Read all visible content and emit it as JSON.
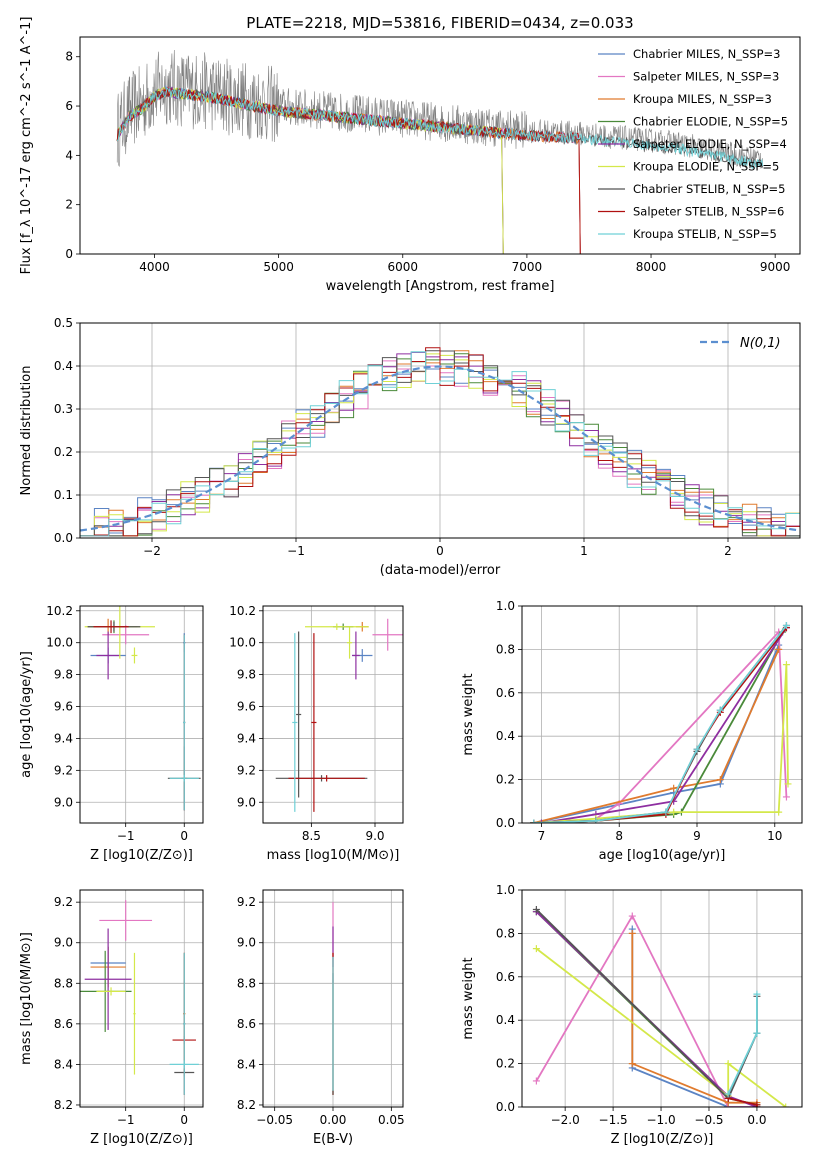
{
  "figure": {
    "title": "PLATE=2218, MJD=53816, FIBERID=0434, z=0.033"
  },
  "colors": {
    "Chabrier MILES": "#5b84c4",
    "Salpeter MILES": "#e377c2",
    "Kroupa MILES": "#e07b2e",
    "Chabrier ELODIE": "#4a8a3a",
    "Salpeter ELODIE": "#8e2fa0",
    "Kroupa ELODIE": "#d4e84a",
    "Chabrier STELIB": "#555555",
    "Salpeter STELIB": "#b01010",
    "Kroupa STELIB": "#6fd0d6",
    "gaussian": "#5b8fd0",
    "data": "#808080"
  },
  "chart_data": [
    {
      "id": "spectrum",
      "type": "line",
      "title": "PLATE=2218, MJD=53816, FIBERID=0434, z=0.033",
      "xlabel": "wavelength [Angstrom, rest frame]",
      "ylabel": "Flux [f_λ 10^-17 erg cm^-2 s^-1 A^-1]",
      "xlim": [
        3400,
        9200
      ],
      "ylim": [
        0,
        8.8
      ],
      "xticks": [
        4000,
        5000,
        6000,
        7000,
        8000,
        9000
      ],
      "yticks": [
        0,
        2,
        4,
        6,
        8
      ],
      "grid": false,
      "legend_position": "top-right",
      "legend": [
        "Chabrier MILES, N_SSP=3",
        "Salpeter MILES, N_SSP=3",
        "Kroupa MILES, N_SSP=3",
        "Chabrier ELODIE, N_SSP=5",
        "Salpeter ELODIE, N_SSP=4",
        "Kroupa ELODIE, N_SSP=5",
        "Chabrier STELIB, N_SSP=5",
        "Salpeter STELIB, N_SSP=6",
        "Kroupa STELIB, N_SSP=5"
      ],
      "continuum": {
        "x": [
          3700,
          3800,
          3900,
          4000,
          4100,
          4200,
          4400,
          4600,
          4800,
          5000,
          5200,
          5400,
          5600,
          5800,
          6000,
          6200,
          6400,
          6600,
          6800,
          7000,
          7200,
          7400,
          7600,
          7800,
          8000,
          8200,
          8400,
          8600,
          8800,
          8900
        ],
        "y": [
          5.0,
          5.8,
          6.1,
          6.6,
          6.8,
          6.7,
          6.6,
          6.4,
          6.2,
          6.0,
          5.9,
          5.8,
          5.7,
          5.6,
          5.5,
          5.4,
          5.3,
          5.2,
          5.1,
          5.0,
          4.95,
          4.9,
          4.8,
          4.7,
          4.6,
          4.5,
          4.3,
          4.1,
          3.9,
          3.9
        ]
      }
    },
    {
      "id": "residuals",
      "type": "bar",
      "xlabel": "(data-model)/error",
      "ylabel": "Normed distribution",
      "xlim": [
        -2.5,
        2.5
      ],
      "ylim": [
        0,
        0.5
      ],
      "xticks": [
        -2,
        -1,
        0,
        1,
        2
      ],
      "yticks": [
        0.0,
        0.1,
        0.2,
        0.3,
        0.4,
        0.5
      ],
      "grid": true,
      "legend_position": "top-right",
      "legend": [
        "N(0,1)"
      ],
      "bin_width": 0.1,
      "gaussian": {
        "mean": 0,
        "sigma": 1
      }
    },
    {
      "id": "age_vs_Z",
      "type": "scatter",
      "xlabel": "Z [log10(Z/Z⊙)]",
      "ylabel": "age  [log10(age/yr)]",
      "xlim": [
        -1.78,
        0.32
      ],
      "ylim": [
        8.87,
        10.23
      ],
      "xticks": [
        -1,
        0
      ],
      "yticks": [
        9.0,
        9.2,
        9.4,
        9.6,
        9.8,
        10.0,
        10.2
      ],
      "grid": true,
      "series": [
        {
          "name": "Chabrier MILES",
          "points": [
            {
              "x": -1.3,
              "y": 9.92,
              "xerr": 0.3,
              "yerr": 0.05
            },
            {
              "x": 0.0,
              "y": 10.0,
              "xerr": 0.02,
              "yerr": 0.06
            }
          ]
        },
        {
          "name": "Salpeter MILES",
          "points": [
            {
              "x": -1.0,
              "y": 10.05,
              "xerr": 0.4,
              "yerr": 0.06
            }
          ]
        },
        {
          "name": "Kroupa MILES",
          "points": [
            {
              "x": -1.3,
              "y": 10.1,
              "xerr": 0.35,
              "yerr": 0.05
            },
            {
              "x": 0.0,
              "y": 9.15,
              "xerr": 0.05,
              "yerr": 0.1
            }
          ]
        },
        {
          "name": "Chabrier ELODIE",
          "points": [
            {
              "x": -1.2,
              "y": 10.1,
              "xerr": 0.4,
              "yerr": 0.04
            }
          ]
        },
        {
          "name": "Salpeter ELODIE",
          "points": [
            {
              "x": -1.3,
              "y": 9.92,
              "xerr": 0.2,
              "yerr": 0.15
            }
          ]
        },
        {
          "name": "Kroupa ELODIE",
          "points": [
            {
              "x": -1.1,
              "y": 10.1,
              "xerr": 0.6,
              "yerr": 0.2
            },
            {
              "x": -0.85,
              "y": 9.92,
              "xerr": 0.05,
              "yerr": 0.05
            }
          ]
        },
        {
          "name": "Chabrier STELIB",
          "points": [
            {
              "x": -1.2,
              "y": 10.1,
              "xerr": 0.45,
              "yerr": 0.03
            },
            {
              "x": 0.0,
              "y": 9.15,
              "xerr": 0.28,
              "yerr": 0.2
            }
          ]
        },
        {
          "name": "Salpeter STELIB",
          "points": [
            {
              "x": -1.25,
              "y": 10.1,
              "xerr": 0.3,
              "yerr": 0.04
            },
            {
              "x": 0.0,
              "y": 9.5,
              "xerr": 0.02,
              "yerr": 0.55
            }
          ]
        },
        {
          "name": "Kroupa STELIB",
          "points": [
            {
              "x": 0.0,
              "y": 9.5,
              "xerr": 0.02,
              "yerr": 0.55
            },
            {
              "x": 0.0,
              "y": 9.15,
              "xerr": 0.25,
              "yerr": 0.02
            }
          ]
        }
      ]
    },
    {
      "id": "age_vs_mass",
      "type": "scatter",
      "xlabel": "mass [log10(M/M⊙)]",
      "ylabel": "",
      "xlim": [
        8.12,
        9.22
      ],
      "ylim": [
        8.87,
        10.23
      ],
      "xticks": [
        8.5,
        9.0
      ],
      "yticks": [
        9.0,
        9.2,
        9.4,
        9.6,
        9.8,
        10.0,
        10.2
      ],
      "grid": true,
      "series": [
        {
          "name": "Chabrier MILES",
          "points": [
            {
              "x": 8.9,
              "y": 9.92,
              "xerr": 0.08,
              "yerr": 0.04
            }
          ]
        },
        {
          "name": "Salpeter MILES",
          "points": [
            {
              "x": 9.1,
              "y": 10.05,
              "xerr": 0.12,
              "yerr": 0.1
            }
          ]
        },
        {
          "name": "Kroupa MILES",
          "points": [
            {
              "x": 8.9,
              "y": 10.1,
              "xerr": 0.05,
              "yerr": 0.03
            }
          ]
        },
        {
          "name": "Chabrier ELODIE",
          "points": [
            {
              "x": 8.75,
              "y": 10.1,
              "xerr": 0.08,
              "yerr": 0.02
            }
          ]
        },
        {
          "name": "Salpeter ELODIE",
          "points": [
            {
              "x": 8.85,
              "y": 9.92,
              "xerr": 0.03,
              "yerr": 0.15
            }
          ]
        },
        {
          "name": "Kroupa ELODIE",
          "points": [
            {
              "x": 8.7,
              "y": 10.1,
              "xerr": 0.25,
              "yerr": 0.02
            },
            {
              "x": 8.8,
              "y": 10.0,
              "xerr": 0.02,
              "yerr": 0.1
            }
          ]
        },
        {
          "name": "Chabrier STELIB",
          "points": [
            {
              "x": 8.58,
              "y": 9.15,
              "xerr": 0.36,
              "yerr": 0.02
            },
            {
              "x": 8.4,
              "y": 9.55,
              "xerr": 0.02,
              "yerr": 0.52
            }
          ]
        },
        {
          "name": "Salpeter STELIB",
          "points": [
            {
              "x": 8.52,
              "y": 9.5,
              "xerr": 0.02,
              "yerr": 0.56
            },
            {
              "x": 8.62,
              "y": 9.15,
              "xerr": 0.3,
              "yerr": 0.02
            }
          ]
        },
        {
          "name": "Kroupa STELIB",
          "points": [
            {
              "x": 8.37,
              "y": 9.5,
              "xerr": 0.02,
              "yerr": 0.56
            }
          ]
        }
      ]
    },
    {
      "id": "massweight_vs_age",
      "type": "line",
      "xlabel": "age  [log10(age/yr)]",
      "ylabel": "mass weight",
      "xlim": [
        6.75,
        10.35
      ],
      "ylim": [
        0,
        1.0
      ],
      "xticks": [
        7,
        8,
        9,
        10
      ],
      "yticks": [
        0.0,
        0.2,
        0.4,
        0.6,
        0.8,
        1.0
      ],
      "grid": true,
      "series": [
        {
          "name": "Chabrier MILES",
          "x": [
            6.9,
            8.7,
            9.3,
            10.05
          ],
          "y": [
            0.0,
            0.14,
            0.18,
            0.82
          ]
        },
        {
          "name": "Salpeter MILES",
          "x": [
            7.7,
            8.0,
            10.05,
            10.15
          ],
          "y": [
            0.02,
            0.09,
            0.88,
            0.12
          ]
        },
        {
          "name": "Kroupa MILES",
          "x": [
            6.9,
            8.7,
            9.3,
            10.05
          ],
          "y": [
            0.0,
            0.16,
            0.2,
            0.8
          ]
        },
        {
          "name": "Chabrier ELODIE",
          "x": [
            6.9,
            7.7,
            8.7,
            8.8,
            10.1
          ],
          "y": [
            0.0,
            0.01,
            0.04,
            0.05,
            0.88
          ]
        },
        {
          "name": "Salpeter ELODIE",
          "x": [
            7.0,
            7.7,
            8.7,
            10.15
          ],
          "y": [
            0.0,
            0.04,
            0.1,
            0.9
          ]
        },
        {
          "name": "Kroupa ELODIE",
          "x": [
            6.9,
            7.7,
            8.7,
            10.05,
            10.15,
            10.17
          ],
          "y": [
            0.0,
            0.02,
            0.05,
            0.05,
            0.73,
            0.18
          ]
        },
        {
          "name": "Chabrier STELIB",
          "x": [
            6.9,
            7.7,
            8.6,
            9.0,
            9.3,
            10.15
          ],
          "y": [
            0.0,
            0.01,
            0.05,
            0.33,
            0.52,
            0.91
          ]
        },
        {
          "name": "Salpeter STELIB",
          "x": [
            6.9,
            7.7,
            8.6,
            9.0,
            9.3,
            10.15
          ],
          "y": [
            0.0,
            0.01,
            0.04,
            0.34,
            0.51,
            0.9
          ]
        },
        {
          "name": "Kroupa STELIB",
          "x": [
            6.9,
            7.7,
            8.6,
            9.0,
            9.3,
            10.15
          ],
          "y": [
            0.0,
            0.01,
            0.05,
            0.34,
            0.52,
            0.91
          ]
        }
      ]
    },
    {
      "id": "mass_vs_Z",
      "type": "scatter",
      "xlabel": "Z [log10(Z/Z⊙)]",
      "ylabel": "mass [log10(M/M⊙)]",
      "xlim": [
        -1.78,
        0.32
      ],
      "ylim": [
        8.19,
        9.26
      ],
      "xticks": [
        -1,
        0
      ],
      "yticks": [
        8.2,
        8.4,
        8.6,
        8.8,
        9.0,
        9.2
      ],
      "grid": true,
      "series": [
        {
          "name": "Chabrier MILES",
          "points": [
            {
              "x": -1.3,
              "y": 8.9,
              "xerr": 0.3,
              "yerr": 0.08
            }
          ]
        },
        {
          "name": "Salpeter MILES",
          "points": [
            {
              "x": -1.0,
              "y": 9.11,
              "xerr": 0.45,
              "yerr": 0.1
            }
          ]
        },
        {
          "name": "Kroupa MILES",
          "points": [
            {
              "x": -1.3,
              "y": 8.88,
              "xerr": 0.3,
              "yerr": 0.1
            },
            {
              "x": 0.0,
              "y": 8.65,
              "xerr": 0.02,
              "yerr": 0.3
            }
          ]
        },
        {
          "name": "Chabrier ELODIE",
          "points": [
            {
              "x": -1.35,
              "y": 8.76,
              "xerr": 0.45,
              "yerr": 0.2
            }
          ]
        },
        {
          "name": "Salpeter ELODIE",
          "points": [
            {
              "x": -1.3,
              "y": 8.82,
              "xerr": 0.4,
              "yerr": 0.25
            }
          ]
        },
        {
          "name": "Kroupa ELODIE",
          "points": [
            {
              "x": -0.85,
              "y": 8.65,
              "xerr": 0.02,
              "yerr": 0.3
            },
            {
              "x": -1.25,
              "y": 8.76,
              "xerr": 0.25,
              "yerr": 0.02
            }
          ]
        },
        {
          "name": "Chabrier STELIB",
          "points": [
            {
              "x": 0.0,
              "y": 8.36,
              "xerr": 0.17,
              "yerr": 0.02
            }
          ]
        },
        {
          "name": "Salpeter STELIB",
          "points": [
            {
              "x": 0.0,
              "y": 8.52,
              "xerr": 0.2,
              "yerr": 0.02
            },
            {
              "x": 0.0,
              "y": 8.6,
              "xerr": 0.02,
              "yerr": 0.35
            }
          ]
        },
        {
          "name": "Kroupa STELIB",
          "points": [
            {
              "x": 0.0,
              "y": 8.4,
              "xerr": 0.25,
              "yerr": 0.02
            },
            {
              "x": 0.0,
              "y": 8.6,
              "xerr": 0.02,
              "yerr": 0.35
            }
          ]
        }
      ]
    },
    {
      "id": "mass_vs_ebv",
      "type": "scatter",
      "xlabel": "E(B-V)",
      "ylabel": "",
      "xlim": [
        -0.06,
        0.06
      ],
      "ylim": [
        8.19,
        9.26
      ],
      "xticks": [
        -0.05,
        0.0,
        0.05
      ],
      "yticks": [
        8.2,
        8.4,
        8.6,
        8.8,
        9.0,
        9.2
      ],
      "grid": true,
      "series": [
        {
          "name": "Salpeter MILES",
          "points": [
            {
              "x": 0.0,
              "y": 9.0,
              "xerr": 0.0,
              "yerr": 0.2
            }
          ]
        },
        {
          "name": "Salpeter ELODIE",
          "points": [
            {
              "x": 0.0,
              "y": 8.98,
              "xerr": 0.0,
              "yerr": 0.1
            }
          ]
        },
        {
          "name": "Kroupa MILES",
          "points": [
            {
              "x": 0.0,
              "y": 8.6,
              "xerr": 0.0,
              "yerr": 0.35
            }
          ]
        },
        {
          "name": "Salpeter STELIB",
          "points": [
            {
              "x": 0.0,
              "y": 8.6,
              "xerr": 0.0,
              "yerr": 0.35
            }
          ]
        },
        {
          "name": "Chabrier STELIB",
          "points": [
            {
              "x": 0.0,
              "y": 8.55,
              "xerr": 0.0,
              "yerr": 0.3
            }
          ]
        },
        {
          "name": "Kroupa STELIB",
          "points": [
            {
              "x": 0.0,
              "y": 8.6,
              "xerr": 0.0,
              "yerr": 0.33
            }
          ]
        }
      ]
    },
    {
      "id": "massweight_vs_Z",
      "type": "line",
      "xlabel": "Z [log10(Z/Z⊙)]",
      "ylabel": "mass weight",
      "xlim": [
        -2.45,
        0.47
      ],
      "ylim": [
        0,
        1.0
      ],
      "xticks": [
        -2.0,
        -1.5,
        -1.0,
        -0.5,
        0.0
      ],
      "yticks": [
        0.0,
        0.2,
        0.4,
        0.6,
        0.8,
        1.0
      ],
      "grid": true,
      "series": [
        {
          "name": "Chabrier MILES",
          "x": [
            -1.3,
            -1.3,
            -0.3,
            0.0
          ],
          "y": [
            0.82,
            0.18,
            0.0,
            0.0
          ]
        },
        {
          "name": "Salpeter MILES",
          "x": [
            -2.3,
            -1.3,
            -0.3,
            0.0
          ],
          "y": [
            0.12,
            0.88,
            0.0,
            0.0
          ]
        },
        {
          "name": "Kroupa MILES",
          "x": [
            -1.3,
            -1.3,
            -0.3,
            0.0
          ],
          "y": [
            0.8,
            0.2,
            0.02,
            0.02
          ]
        },
        {
          "name": "Chabrier ELODIE",
          "x": [
            -2.3,
            -0.3,
            0.0
          ],
          "y": [
            0.9,
            0.04,
            0.01
          ]
        },
        {
          "name": "Salpeter ELODIE",
          "x": [
            -2.3,
            -0.3,
            0.0
          ],
          "y": [
            0.9,
            0.05,
            0.0
          ]
        },
        {
          "name": "Kroupa ELODIE",
          "x": [
            -2.3,
            -0.3,
            -0.3,
            0.3
          ],
          "y": [
            0.73,
            0.05,
            0.2,
            0.0
          ]
        },
        {
          "name": "Chabrier STELIB",
          "x": [
            -2.3,
            -0.3,
            0.0,
            0.0
          ],
          "y": [
            0.91,
            0.04,
            0.34,
            0.51
          ]
        },
        {
          "name": "Salpeter STELIB",
          "x": [
            -0.3,
            0.0,
            0.0
          ],
          "y": [
            0.04,
            0.01,
            0.0
          ]
        },
        {
          "name": "Kroupa STELIB",
          "x": [
            -0.3,
            0.0,
            0.0
          ],
          "y": [
            0.06,
            0.34,
            0.52
          ]
        }
      ]
    }
  ]
}
